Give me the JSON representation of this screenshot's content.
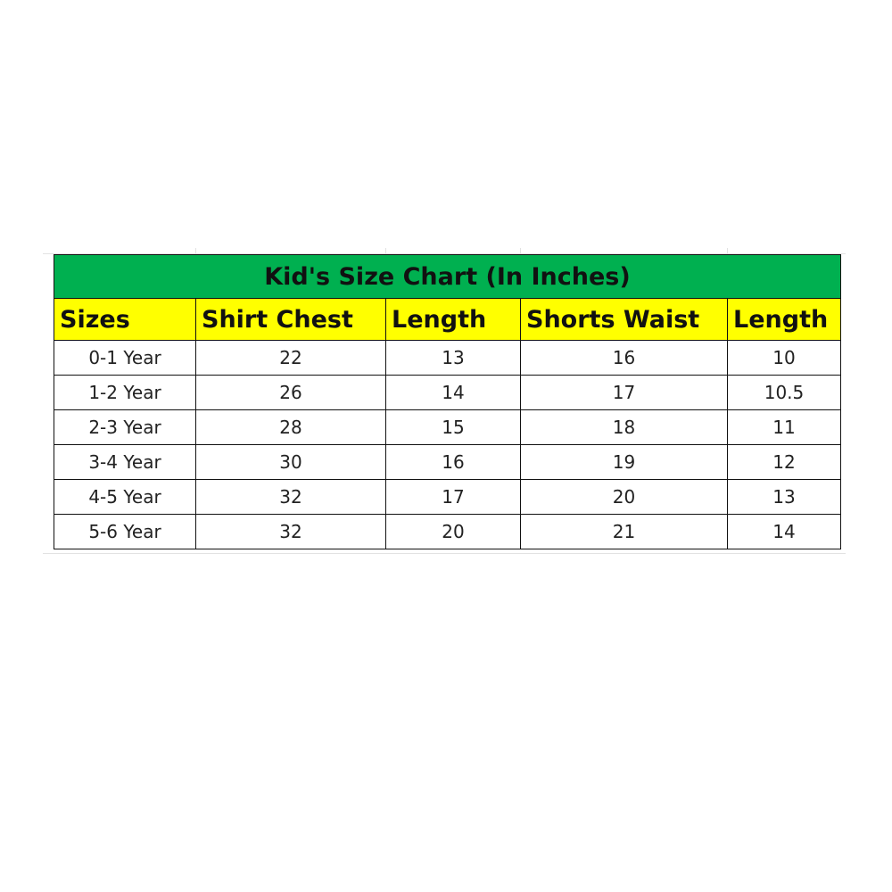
{
  "title": "Kid's Size Chart (In Inches)",
  "colors": {
    "title_bg": "#00b050",
    "header_bg": "#ffff00"
  },
  "headers": [
    "Sizes",
    "Shirt Chest",
    "Length",
    "Shorts Waist",
    "Length"
  ],
  "rows": [
    [
      "0-1 Year",
      "22",
      "13",
      "16",
      "10"
    ],
    [
      "1-2 Year",
      "26",
      "14",
      "17",
      "10.5"
    ],
    [
      "2-3 Year",
      "28",
      "15",
      "18",
      "11"
    ],
    [
      "3-4 Year",
      "30",
      "16",
      "19",
      "12"
    ],
    [
      "4-5 Year",
      "32",
      "17",
      "20",
      "13"
    ],
    [
      "5-6 Year",
      "32",
      "20",
      "21",
      "14"
    ]
  ]
}
